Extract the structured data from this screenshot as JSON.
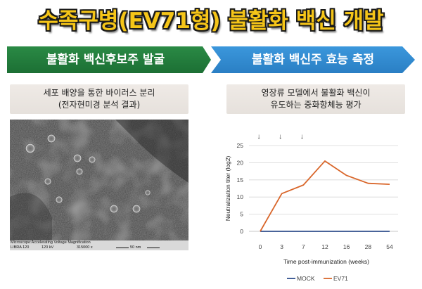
{
  "title": "수족구병(EV71형) 불활화 백신 개발",
  "left_banner": {
    "label": "불활화 백신후보주 발굴",
    "color": "#1e7b3a"
  },
  "right_banner": {
    "label": "불활화 백신주 효능 측정",
    "color": "#2e8bd1"
  },
  "left_caption": {
    "line1": "세포 배양을 통한 바이러스 분리",
    "line2": "(전자현미경 분석 결과)"
  },
  "right_caption": {
    "line1": "영장류 모델에서 불활화 백신이",
    "line2": "유도하는 중화항체능 평가"
  },
  "micrograph": {
    "info_line1": "Microscope:Accelerating Voltage Magnification",
    "info_line2_a": "LIBRA 120",
    "info_line2_b": "120 kV",
    "info_line2_c": "315000 x",
    "scale_label": "50 nm"
  },
  "chart_data": {
    "type": "line",
    "categories": [
      "0",
      "3",
      "7",
      "12",
      "16",
      "28",
      "54"
    ],
    "xlabel": "Time post-immunization (weeks)",
    "ylabel": "Neutralization titer (log2)",
    "ylim": [
      0,
      25
    ],
    "yticks": [
      0,
      5,
      10,
      15,
      20,
      25
    ],
    "grid": true,
    "legend_position": "bottom",
    "annotation": "↓",
    "arrow_categories": [
      "0",
      "3",
      "7"
    ],
    "series": [
      {
        "name": "MOCK",
        "color": "#2f4e8c",
        "values": [
          0,
          0,
          0,
          0,
          0,
          0,
          0
        ]
      },
      {
        "name": "EV71",
        "color": "#d9662a",
        "values": [
          0,
          11,
          13.5,
          20.5,
          16.3,
          14,
          13.7
        ]
      }
    ]
  }
}
